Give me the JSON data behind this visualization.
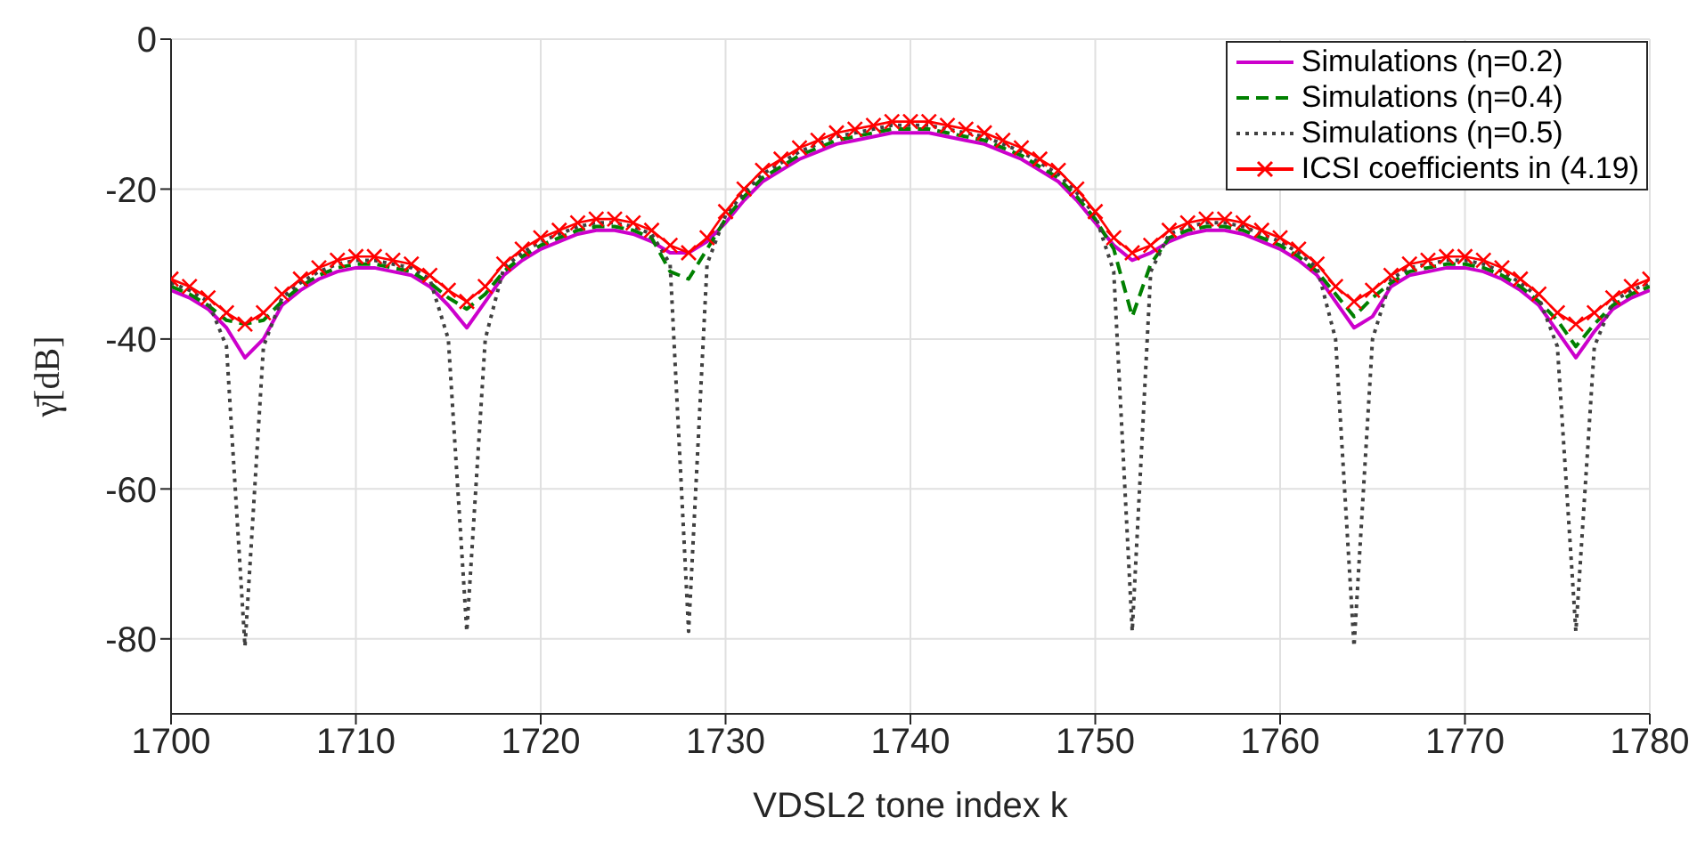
{
  "chart_data": {
    "type": "line",
    "xlabel": "VDSL2 tone index k",
    "ylabel": "γ̄[dB]",
    "x": [
      1700,
      1701,
      1702,
      1703,
      1704,
      1705,
      1706,
      1707,
      1708,
      1709,
      1710,
      1711,
      1712,
      1713,
      1714,
      1715,
      1716,
      1717,
      1718,
      1719,
      1720,
      1721,
      1722,
      1723,
      1724,
      1725,
      1726,
      1727,
      1728,
      1729,
      1730,
      1731,
      1732,
      1733,
      1734,
      1735,
      1736,
      1737,
      1738,
      1739,
      1740,
      1741,
      1742,
      1743,
      1744,
      1745,
      1746,
      1747,
      1748,
      1749,
      1750,
      1751,
      1752,
      1753,
      1754,
      1755,
      1756,
      1757,
      1758,
      1759,
      1760,
      1761,
      1762,
      1763,
      1764,
      1765,
      1766,
      1767,
      1768,
      1769,
      1770,
      1771,
      1772,
      1773,
      1774,
      1775,
      1776,
      1777,
      1778,
      1779,
      1780
    ],
    "series": [
      {
        "name": "Simulations (η=0.2)",
        "color": "#cc00cc",
        "line_style": "solid",
        "marker": "none",
        "values": [
          -33.5,
          -34.5,
          -36,
          -38.5,
          -42.5,
          -40,
          -35.5,
          -33.5,
          -32,
          -31,
          -30.5,
          -30.5,
          -31,
          -31.5,
          -33,
          -35.5,
          -38.5,
          -35,
          -31.5,
          -29.5,
          -28,
          -27,
          -26,
          -25.5,
          -25.5,
          -26,
          -27,
          -28.5,
          -28.5,
          -27,
          -24.5,
          -21.5,
          -19,
          -17.5,
          -16,
          -15,
          -14,
          -13.5,
          -13,
          -12.5,
          -12.5,
          -12.5,
          -13,
          -13.5,
          -14,
          -15,
          -16,
          -17.5,
          -19,
          -21.5,
          -24.5,
          -27.5,
          -29.5,
          -28.5,
          -27,
          -26,
          -25.5,
          -25.5,
          -26,
          -27,
          -28,
          -29.5,
          -31.5,
          -35,
          -38.5,
          -37,
          -33,
          -31.5,
          -31,
          -30.5,
          -30.5,
          -31,
          -32,
          -33.5,
          -35.5,
          -39,
          -42.5,
          -39,
          -36,
          -34.5,
          -33.5
        ]
      },
      {
        "name": "Simulations (η=0.4)",
        "color": "#008000",
        "line_style": "dashed",
        "marker": "none",
        "values": [
          -33,
          -34,
          -35.5,
          -37.5,
          -38,
          -37.5,
          -35,
          -33,
          -31.5,
          -30.5,
          -30,
          -30,
          -30.5,
          -31,
          -32.5,
          -34.5,
          -36,
          -34,
          -31,
          -29,
          -27.5,
          -26.5,
          -25.5,
          -25,
          -25,
          -25.5,
          -26.5,
          -31,
          -32,
          -28,
          -24,
          -21,
          -18.5,
          -17,
          -15.5,
          -14.5,
          -13.5,
          -13,
          -12.5,
          -12,
          -12,
          -12,
          -12.5,
          -13,
          -13.5,
          -14.5,
          -15.5,
          -17,
          -18.5,
          -21,
          -24,
          -28,
          -37,
          -30,
          -26.5,
          -25.5,
          -25,
          -25,
          -25.5,
          -26.5,
          -27.5,
          -29,
          -31,
          -34,
          -37,
          -34.5,
          -32.5,
          -31,
          -30.5,
          -30,
          -30,
          -30.5,
          -31.5,
          -33,
          -35,
          -37.5,
          -41,
          -38,
          -35.5,
          -34,
          -33
        ]
      },
      {
        "name": "Simulations (η=0.5)",
        "color": "#404040",
        "line_style": "dotted",
        "marker": "none",
        "values": [
          -32.5,
          -33.5,
          -35,
          -41,
          -81,
          -41,
          -34.5,
          -32.5,
          -31,
          -30,
          -29.5,
          -29.5,
          -30,
          -30.5,
          -32,
          -40,
          -79,
          -40,
          -30.5,
          -28.5,
          -27,
          -26,
          -25,
          -24.5,
          -24.5,
          -25,
          -26,
          -30,
          -79,
          -30,
          -23.5,
          -20.5,
          -18,
          -16.5,
          -15,
          -14,
          -13,
          -12.5,
          -12,
          -11.5,
          -11.5,
          -11.5,
          -12,
          -12.5,
          -13,
          -14,
          -15,
          -16.5,
          -18,
          -20.5,
          -23.5,
          -31,
          -79,
          -31,
          -26,
          -25,
          -24.5,
          -24.5,
          -25,
          -26,
          -27,
          -28.5,
          -30.5,
          -40,
          -81,
          -40,
          -32,
          -30.5,
          -30,
          -29.5,
          -29.5,
          -30,
          -31,
          -32.5,
          -34.5,
          -41,
          -79,
          -41,
          -35,
          -33.5,
          -32.5
        ]
      },
      {
        "name": "ICSI coefficients in (4.19)",
        "color": "#ff0000",
        "line_style": "solid",
        "marker": "cross",
        "values": [
          -32,
          -33,
          -34.5,
          -36.5,
          -38,
          -36.5,
          -34,
          -32,
          -30.5,
          -29.5,
          -29,
          -29,
          -29.5,
          -30,
          -31.5,
          -33.5,
          -35,
          -33,
          -30,
          -28,
          -26.5,
          -25.5,
          -24.5,
          -24,
          -24,
          -24.5,
          -25.5,
          -27.5,
          -28.5,
          -26.5,
          -23,
          -20,
          -17.5,
          -16,
          -14.5,
          -13.5,
          -12.5,
          -12,
          -11.5,
          -11,
          -11,
          -11,
          -11.5,
          -12,
          -12.5,
          -13.5,
          -14.5,
          -16,
          -17.5,
          -20,
          -23,
          -26.5,
          -28.5,
          -27.5,
          -25.5,
          -24.5,
          -24,
          -24,
          -24.5,
          -25.5,
          -26.5,
          -28,
          -30,
          -33,
          -35,
          -33.5,
          -31.5,
          -30,
          -29.5,
          -29,
          -29,
          -29.5,
          -30.5,
          -32,
          -34,
          -36.5,
          -38,
          -36.5,
          -34.5,
          -33,
          -32
        ]
      }
    ],
    "xlim": [
      1700,
      1780
    ],
    "xticks": [
      1700,
      1710,
      1720,
      1730,
      1740,
      1750,
      1760,
      1770,
      1780
    ],
    "ylim": [
      -90,
      0
    ],
    "yticks": [
      -80,
      -60,
      -40,
      -20,
      0
    ],
    "grid": true,
    "legend": "top right"
  }
}
